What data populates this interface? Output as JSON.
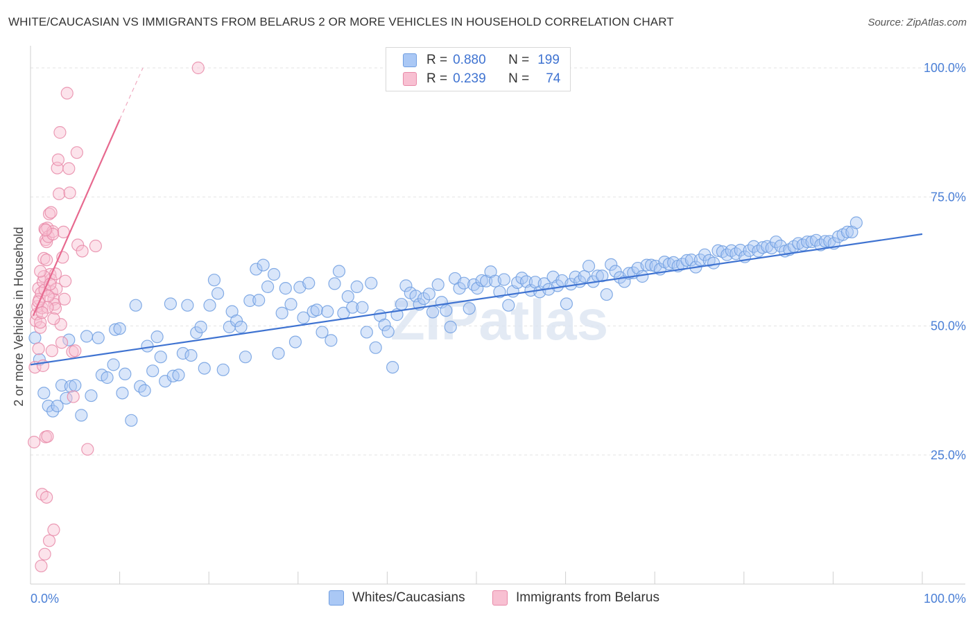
{
  "title": "WHITE/CAUCASIAN VS IMMIGRANTS FROM BELARUS 2 OR MORE VEHICLES IN HOUSEHOLD CORRELATION CHART",
  "source": "Source: ZipAtlas.com",
  "watermark": "ZIPatlas",
  "legend_top": {
    "r_label": "R =",
    "n_label": "N =",
    "rows": [
      {
        "r": "0.880",
        "n": "199",
        "color": "#aac8f5",
        "border": "#6f9de0"
      },
      {
        "r": "0.239",
        "n": "74",
        "color": "#f8c0d2",
        "border": "#e889a8"
      }
    ]
  },
  "legend_bottom": [
    {
      "label": "Whites/Caucasians",
      "color": "#aac8f5",
      "border": "#6f9de0"
    },
    {
      "label": "Immigrants from Belarus",
      "color": "#f8c0d2",
      "border": "#e889a8"
    }
  ],
  "chart_data": {
    "type": "scatter",
    "title": "WHITE/CAUCASIAN VS IMMIGRANTS FROM BELARUS 2 OR MORE VEHICLES IN HOUSEHOLD CORRELATION CHART",
    "xlabel": "",
    "ylabel": "2 or more Vehicles in Household",
    "xlim": [
      0,
      100
    ],
    "ylim": [
      0,
      100
    ],
    "x_tick_labels": [
      "0.0%",
      "100.0%"
    ],
    "y_ticks": [
      25,
      50,
      75,
      100
    ],
    "y_tick_labels": [
      "25.0%",
      "50.0%",
      "75.0%",
      "100.0%"
    ],
    "grid": true,
    "legend_position": "top-center",
    "series": [
      {
        "name": "Whites/Caucasians",
        "color": "#6f9de0",
        "fill": "#aac8f5",
        "r": 0.88,
        "n": 199,
        "trend": {
          "x": [
            0,
            100
          ],
          "y": [
            42.5,
            67.8
          ]
        },
        "points": [
          [
            0.5,
            47.7
          ],
          [
            1,
            43.5
          ],
          [
            1.5,
            37
          ],
          [
            2,
            34.5
          ],
          [
            2.5,
            33.5
          ],
          [
            3,
            34.5
          ],
          [
            3.5,
            38.5
          ],
          [
            4,
            36
          ],
          [
            4.3,
            47.3
          ],
          [
            4.5,
            38.3
          ],
          [
            5,
            38.5
          ],
          [
            5.7,
            32.7
          ],
          [
            6.3,
            48
          ],
          [
            6.8,
            36.5
          ],
          [
            7.6,
            47.7
          ],
          [
            8,
            40.5
          ],
          [
            8.6,
            40
          ],
          [
            9.3,
            42.5
          ],
          [
            9.5,
            49.3
          ],
          [
            10,
            49.5
          ],
          [
            10.3,
            37
          ],
          [
            10.6,
            40.7
          ],
          [
            11.3,
            31.7
          ],
          [
            11.8,
            54
          ],
          [
            12.3,
            38.3
          ],
          [
            12.8,
            37.5
          ],
          [
            13.1,
            46.1
          ],
          [
            13.7,
            41.3
          ],
          [
            14.2,
            47.9
          ],
          [
            14.6,
            44
          ],
          [
            15.1,
            39.3
          ],
          [
            15.7,
            54.3
          ],
          [
            16,
            40.3
          ],
          [
            16.6,
            40.5
          ],
          [
            17.1,
            44.7
          ],
          [
            17.6,
            54
          ],
          [
            18,
            44.3
          ],
          [
            18.6,
            48.7
          ],
          [
            19.1,
            49.8
          ],
          [
            19.5,
            41.8
          ],
          [
            20.1,
            54
          ],
          [
            20.6,
            58.9
          ],
          [
            21,
            56.3
          ],
          [
            21.6,
            41.5
          ],
          [
            22.3,
            49.8
          ],
          [
            22.6,
            52.8
          ],
          [
            23.1,
            51
          ],
          [
            23.6,
            49.8
          ],
          [
            24.1,
            44
          ],
          [
            24.6,
            54.9
          ],
          [
            25.3,
            61
          ],
          [
            25.6,
            55
          ],
          [
            26.1,
            61.8
          ],
          [
            26.6,
            57.6
          ],
          [
            27.3,
            60
          ],
          [
            27.8,
            44.7
          ],
          [
            28.2,
            52.5
          ],
          [
            28.6,
            57.3
          ],
          [
            29.2,
            54.2
          ],
          [
            29.7,
            46.9
          ],
          [
            30.2,
            57.5
          ],
          [
            30.6,
            51.6
          ],
          [
            31.2,
            58.3
          ],
          [
            31.7,
            52.8
          ],
          [
            32.1,
            53.1
          ],
          [
            32.7,
            48.8
          ],
          [
            33.3,
            52.8
          ],
          [
            33.7,
            47.2
          ],
          [
            34.1,
            58.2
          ],
          [
            34.6,
            60.6
          ],
          [
            35.1,
            52.5
          ],
          [
            35.6,
            55.7
          ],
          [
            36.1,
            53.6
          ],
          [
            36.6,
            57.6
          ],
          [
            37.2,
            53.6
          ],
          [
            37.7,
            48.8
          ],
          [
            38.2,
            58.3
          ],
          [
            38.7,
            45.8
          ],
          [
            39.2,
            52
          ],
          [
            39.7,
            50.2
          ],
          [
            40.1,
            48.9
          ],
          [
            40.6,
            42
          ],
          [
            41.1,
            52.2
          ],
          [
            41.6,
            54.2
          ],
          [
            42.1,
            57.8
          ],
          [
            42.6,
            56.4
          ],
          [
            43.2,
            55.8
          ],
          [
            43.6,
            54.2
          ],
          [
            44.1,
            55.3
          ],
          [
            44.7,
            56.2
          ],
          [
            45.1,
            52.7
          ],
          [
            45.7,
            58
          ],
          [
            46.1,
            54.6
          ],
          [
            46.6,
            53
          ],
          [
            47.1,
            49.8
          ],
          [
            47.6,
            59.2
          ],
          [
            48.1,
            57.3
          ],
          [
            48.6,
            58.3
          ],
          [
            49.2,
            53.4
          ],
          [
            49.7,
            58
          ],
          [
            50.1,
            57.3
          ],
          [
            50.6,
            58.8
          ],
          [
            51.1,
            58.7
          ],
          [
            51.6,
            60.5
          ],
          [
            52.1,
            58.7
          ],
          [
            52.6,
            56.6
          ],
          [
            53.1,
            59
          ],
          [
            53.6,
            54
          ],
          [
            54.1,
            56.7
          ],
          [
            54.6,
            58.4
          ],
          [
            55.1,
            59.3
          ],
          [
            55.6,
            58.6
          ],
          [
            56.1,
            56.9
          ],
          [
            56.6,
            58.5
          ],
          [
            57.1,
            56.6
          ],
          [
            57.6,
            58.2
          ],
          [
            58.1,
            57.1
          ],
          [
            58.6,
            59.5
          ],
          [
            59.1,
            57.8
          ],
          [
            59.6,
            58.8
          ],
          [
            60.1,
            54.3
          ],
          [
            60.6,
            58.1
          ],
          [
            61.1,
            59.5
          ],
          [
            61.6,
            58.6
          ],
          [
            62.1,
            59.6
          ],
          [
            62.6,
            61.6
          ],
          [
            63.1,
            58.6
          ],
          [
            63.6,
            59.7
          ],
          [
            64.1,
            59.7
          ],
          [
            64.6,
            56.1
          ],
          [
            65.1,
            61.9
          ],
          [
            65.6,
            60.6
          ],
          [
            66.1,
            59.4
          ],
          [
            66.6,
            58.6
          ],
          [
            67.1,
            60.2
          ],
          [
            67.6,
            60.3
          ],
          [
            68.1,
            61.2
          ],
          [
            68.6,
            59.6
          ],
          [
            69.1,
            61.8
          ],
          [
            69.6,
            61.8
          ],
          [
            70.1,
            61.6
          ],
          [
            70.6,
            61
          ],
          [
            71.1,
            62.4
          ],
          [
            71.6,
            62
          ],
          [
            72.1,
            62.3
          ],
          [
            72.6,
            61.6
          ],
          [
            73.1,
            62
          ],
          [
            73.6,
            62.7
          ],
          [
            74.1,
            62.8
          ],
          [
            74.6,
            61.4
          ],
          [
            75.1,
            62.8
          ],
          [
            75.6,
            63.8
          ],
          [
            76.1,
            62.7
          ],
          [
            76.6,
            62.2
          ],
          [
            77.1,
            64.6
          ],
          [
            77.6,
            64.4
          ],
          [
            78.1,
            63.8
          ],
          [
            78.6,
            64.6
          ],
          [
            79.1,
            64
          ],
          [
            79.6,
            64.7
          ],
          [
            80.1,
            63.4
          ],
          [
            80.6,
            64.6
          ],
          [
            81.1,
            65.4
          ],
          [
            81.6,
            64.5
          ],
          [
            82.1,
            65.2
          ],
          [
            82.6,
            65.4
          ],
          [
            83.1,
            65.1
          ],
          [
            83.6,
            66.3
          ],
          [
            84.1,
            65.5
          ],
          [
            84.6,
            64.5
          ],
          [
            85.1,
            64.8
          ],
          [
            85.6,
            65.4
          ],
          [
            86.1,
            66
          ],
          [
            86.6,
            65.7
          ],
          [
            87.1,
            66.3
          ],
          [
            87.6,
            66.3
          ],
          [
            88.1,
            66.6
          ],
          [
            88.6,
            65.7
          ],
          [
            89.1,
            66.4
          ],
          [
            89.6,
            66.4
          ],
          [
            90.1,
            66
          ],
          [
            90.6,
            67.3
          ],
          [
            91.1,
            67.7
          ],
          [
            91.6,
            68.2
          ],
          [
            92.1,
            68.2
          ],
          [
            92.6,
            70
          ]
        ]
      },
      {
        "name": "Immigrants from Belarus",
        "color": "#e889a8",
        "fill": "#f8c0d2",
        "r": 0.239,
        "n": 74,
        "trend": {
          "x": [
            0.3,
            10
          ],
          "y": [
            52,
            90
          ]
        },
        "trend_dashed_to": {
          "x": 12.6,
          "y": 100
        },
        "points": [
          [
            0.4,
            27.5
          ],
          [
            0.5,
            42
          ],
          [
            0.6,
            51
          ],
          [
            0.7,
            52.3
          ],
          [
            0.8,
            53.8
          ],
          [
            0.9,
            57.3
          ],
          [
            1,
            55.2
          ],
          [
            1.1,
            49.7
          ],
          [
            1.2,
            56.4
          ],
          [
            1.3,
            53.5
          ],
          [
            1.4,
            58.6
          ],
          [
            1.5,
            63.1
          ],
          [
            1.6,
            68.8
          ],
          [
            1.7,
            66.7
          ],
          [
            1.8,
            66.3
          ],
          [
            1.9,
            69
          ],
          [
            2,
            67.3
          ],
          [
            2.1,
            71.7
          ],
          [
            2.2,
            60
          ],
          [
            2.3,
            59
          ],
          [
            2.4,
            56.6
          ],
          [
            2.5,
            68.3
          ],
          [
            2.6,
            55.2
          ],
          [
            2.7,
            54.2
          ],
          [
            2.8,
            53.4
          ],
          [
            2.9,
            57.2
          ],
          [
            3,
            80.6
          ],
          [
            3.1,
            82.2
          ],
          [
            3.2,
            75.6
          ],
          [
            3.3,
            87.5
          ],
          [
            3.4,
            50.3
          ],
          [
            3.5,
            46.8
          ],
          [
            3.6,
            63.3
          ],
          [
            3.7,
            68.2
          ],
          [
            3.8,
            55.2
          ],
          [
            3.9,
            58.7
          ],
          [
            4.1,
            95.1
          ],
          [
            4.3,
            80.5
          ],
          [
            4.4,
            75.8
          ],
          [
            4.7,
            45
          ],
          [
            4.8,
            36.3
          ],
          [
            5,
            45.2
          ],
          [
            5.2,
            83.6
          ],
          [
            5.3,
            65.7
          ],
          [
            5.8,
            64.5
          ],
          [
            6.4,
            26.1
          ],
          [
            7.3,
            65.5
          ],
          [
            18.8,
            100
          ],
          [
            1.2,
            3.5
          ],
          [
            1.6,
            5.8
          ],
          [
            2.1,
            8.4
          ],
          [
            2.6,
            10.5
          ],
          [
            1.3,
            17.4
          ],
          [
            1.8,
            16.8
          ],
          [
            1.7,
            28.5
          ],
          [
            1.9,
            28.6
          ],
          [
            0.9,
            45.6
          ],
          [
            1.4,
            42.3
          ],
          [
            2.4,
            45.2
          ],
          [
            1.5,
            59.6
          ],
          [
            1.6,
            57
          ],
          [
            1.1,
            50.7
          ],
          [
            1.8,
            62.8
          ],
          [
            2,
            55.8
          ],
          [
            2.2,
            58.1
          ],
          [
            1.9,
            53.6
          ],
          [
            2.5,
            67.8
          ],
          [
            1.7,
            68.6
          ],
          [
            1.1,
            60.6
          ],
          [
            0.9,
            54.7
          ],
          [
            2.3,
            72
          ],
          [
            2.8,
            60.1
          ],
          [
            1.3,
            52.6
          ],
          [
            2.6,
            51.4
          ]
        ]
      }
    ]
  }
}
